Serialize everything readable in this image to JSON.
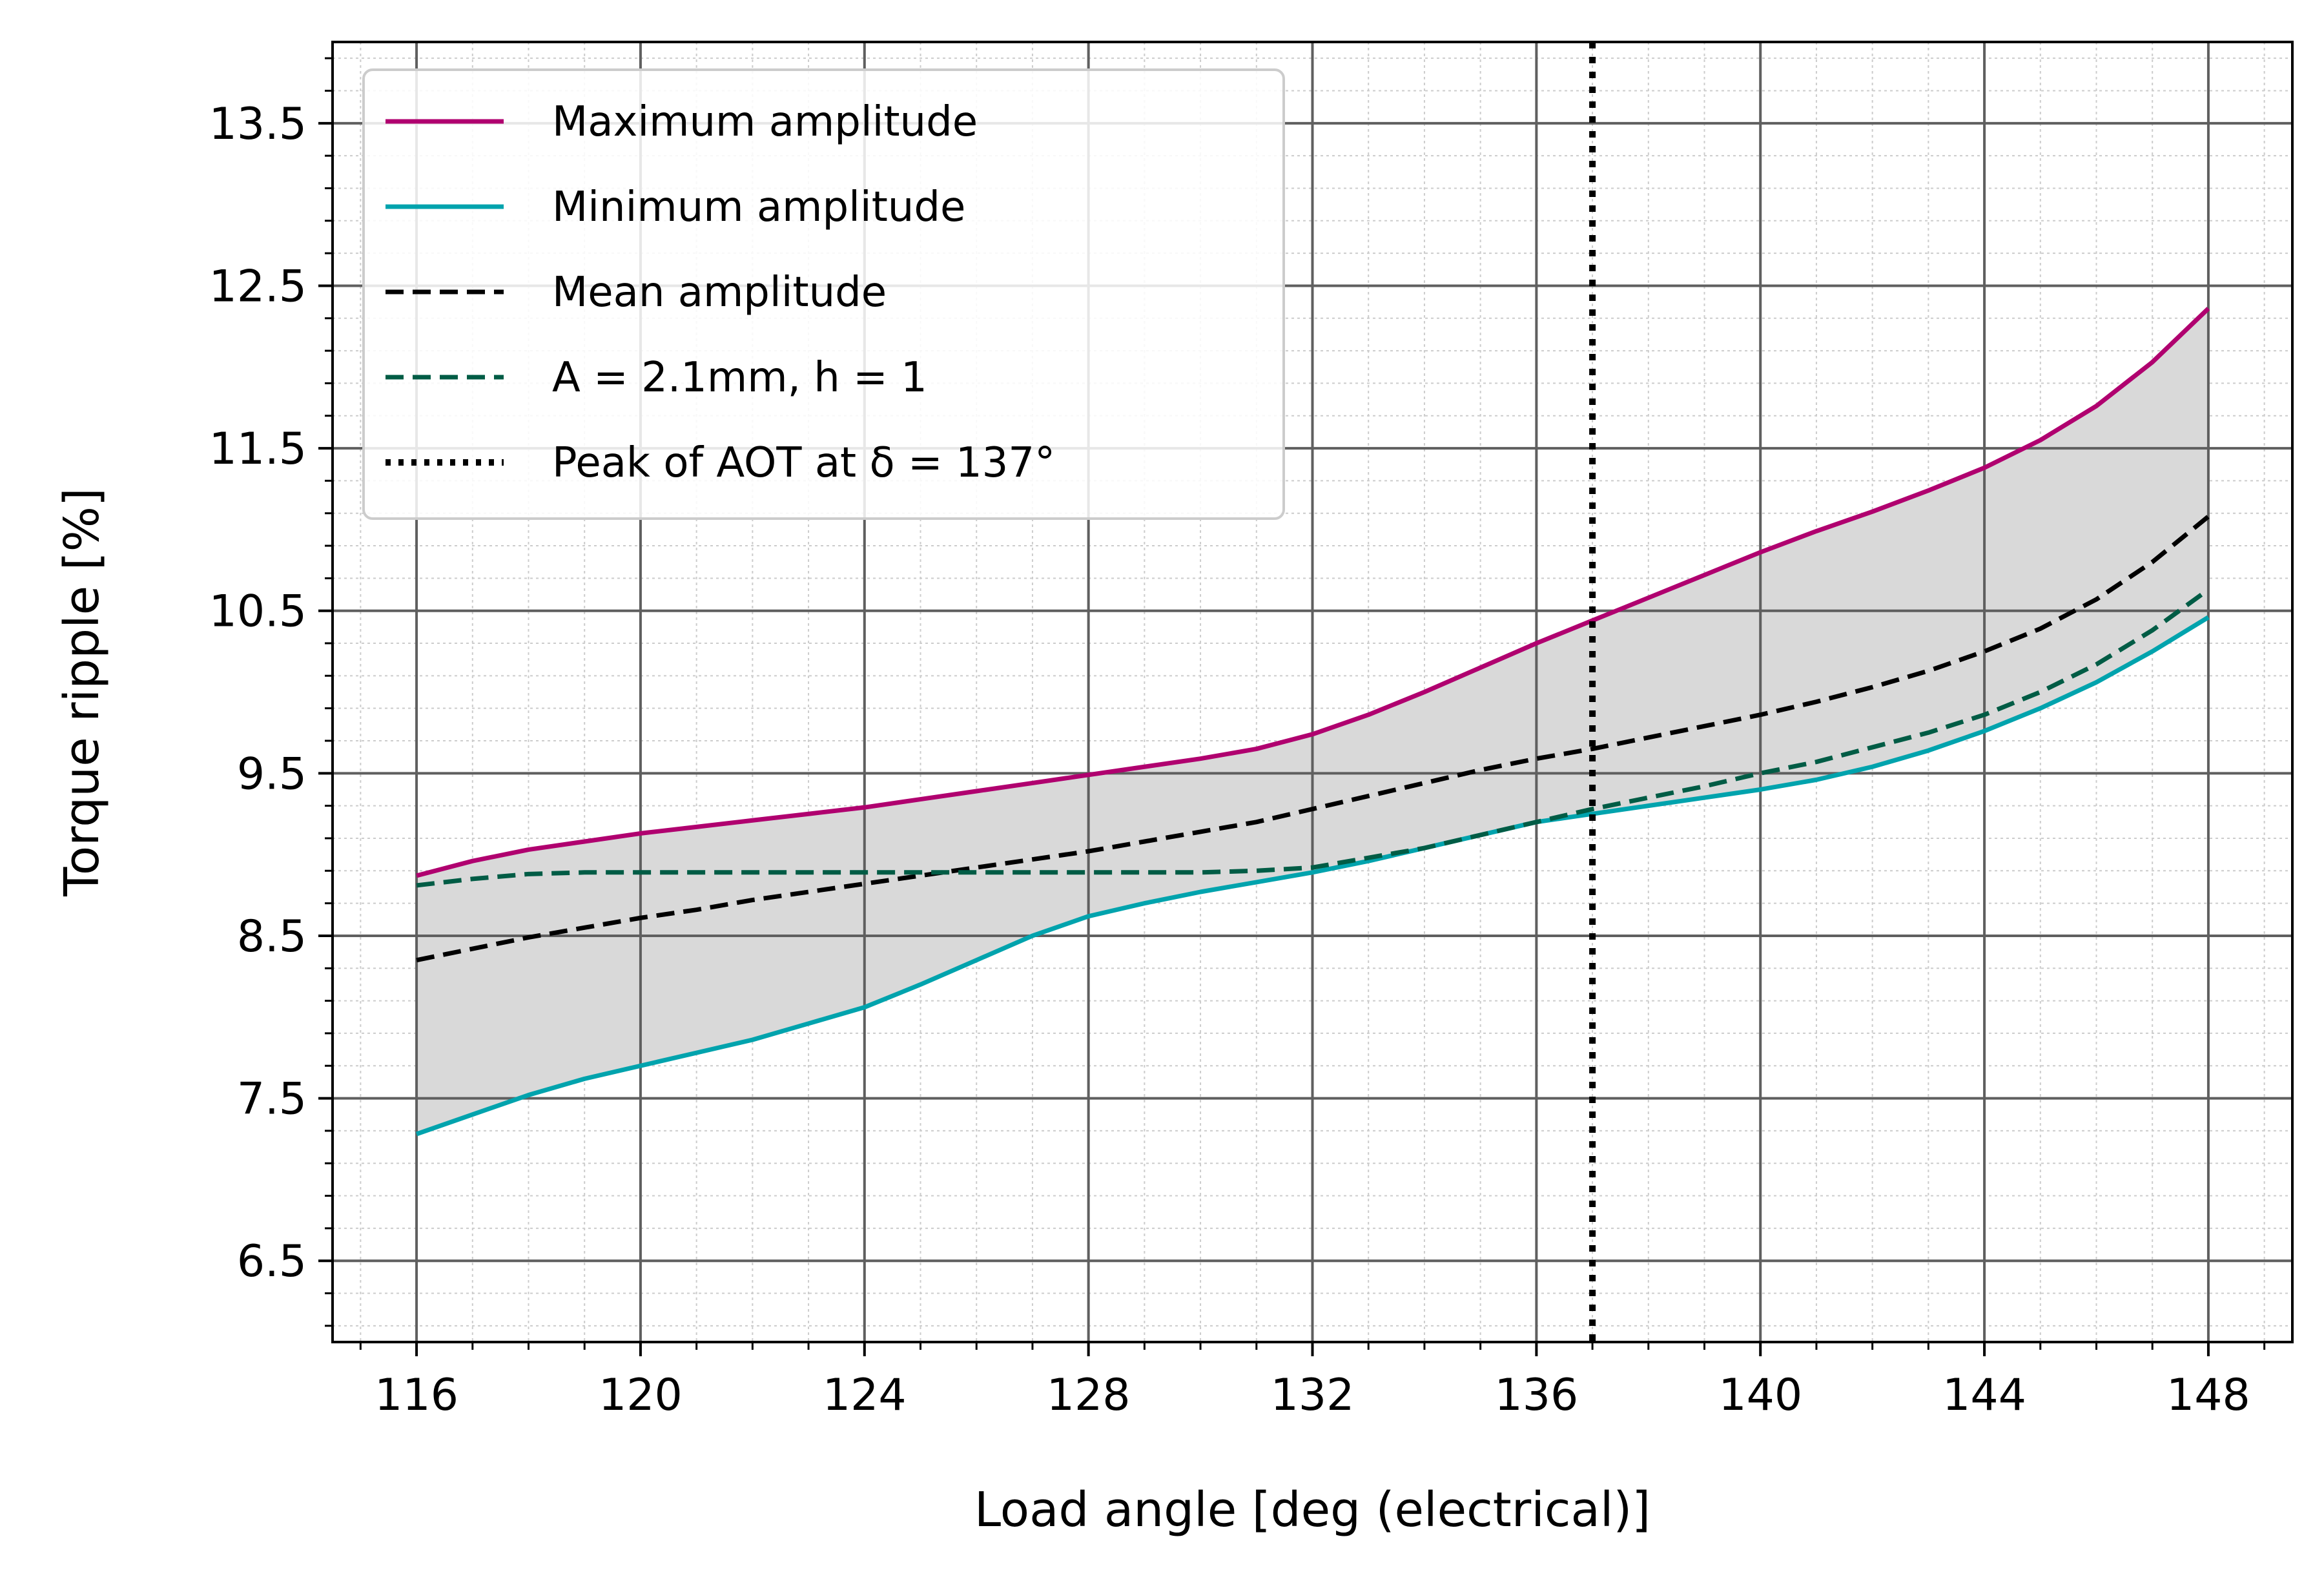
{
  "chart_data": {
    "type": "line",
    "title": "",
    "xlabel": "Load angle [deg (electrical)]",
    "ylabel": "Torque ripple [%]",
    "xlim": [
      114.5,
      149.5
    ],
    "ylim": [
      6.0,
      14.0
    ],
    "xticks": [
      116,
      120,
      124,
      128,
      132,
      136,
      140,
      144,
      148
    ],
    "xtick_labels": [
      "116",
      "120",
      "124",
      "128",
      "132",
      "136",
      "140",
      "144",
      "148"
    ],
    "yticks": [
      6.5,
      7.5,
      8.5,
      9.5,
      10.5,
      11.5,
      12.5,
      13.5
    ],
    "ytick_labels": [
      "6.5",
      "7.5",
      "8.5",
      "9.5",
      "10.5",
      "11.5",
      "12.5",
      "13.5"
    ],
    "grid": true,
    "minor_grid": true,
    "legend_position": "top-left",
    "x": [
      116,
      117,
      118,
      119,
      120,
      121,
      122,
      123,
      124,
      125,
      126,
      127,
      128,
      129,
      130,
      131,
      132,
      133,
      134,
      135,
      136,
      137,
      138,
      139,
      140,
      141,
      142,
      143,
      144,
      145,
      146,
      147,
      148
    ],
    "series": [
      {
        "name": "Maximum amplitude",
        "color": "#b0006f",
        "style": "solid",
        "values": [
          8.87,
          8.96,
          9.03,
          9.08,
          9.13,
          9.17,
          9.21,
          9.25,
          9.29,
          9.34,
          9.39,
          9.44,
          9.49,
          9.54,
          9.59,
          9.65,
          9.74,
          9.86,
          10.0,
          10.15,
          10.3,
          10.44,
          10.58,
          10.72,
          10.86,
          10.99,
          11.11,
          11.24,
          11.38,
          11.55,
          11.76,
          12.03,
          12.36
        ]
      },
      {
        "name": "Minimum amplitude",
        "color": "#00a3ad",
        "style": "solid",
        "values": [
          7.28,
          7.4,
          7.52,
          7.62,
          7.7,
          7.78,
          7.86,
          7.96,
          8.06,
          8.2,
          8.35,
          8.5,
          8.62,
          8.7,
          8.77,
          8.83,
          8.89,
          8.96,
          9.04,
          9.12,
          9.2,
          9.25,
          9.3,
          9.35,
          9.4,
          9.46,
          9.54,
          9.64,
          9.76,
          9.9,
          10.06,
          10.25,
          10.46
        ]
      },
      {
        "name": "Mean amplitude",
        "color": "#000000",
        "style": "dashed",
        "values": [
          8.35,
          8.42,
          8.49,
          8.55,
          8.61,
          8.66,
          8.72,
          8.77,
          8.82,
          8.87,
          8.92,
          8.97,
          9.02,
          9.08,
          9.14,
          9.2,
          9.28,
          9.36,
          9.44,
          9.52,
          9.59,
          9.65,
          9.72,
          9.79,
          9.86,
          9.94,
          10.03,
          10.13,
          10.25,
          10.39,
          10.57,
          10.8,
          11.08
        ]
      },
      {
        "name": "A = 2.1mm, h = 1",
        "color": "#005c45",
        "style": "dashed",
        "values": [
          8.81,
          8.85,
          8.88,
          8.89,
          8.89,
          8.89,
          8.89,
          8.89,
          8.89,
          8.89,
          8.89,
          8.89,
          8.89,
          8.89,
          8.89,
          8.9,
          8.92,
          8.98,
          9.04,
          9.12,
          9.2,
          9.28,
          9.35,
          9.42,
          9.5,
          9.57,
          9.66,
          9.75,
          9.86,
          10.0,
          10.17,
          10.38,
          10.63
        ]
      }
    ],
    "fill_between": {
      "upper": "Maximum amplitude",
      "lower": "Minimum amplitude",
      "color": "#d9d9d9"
    },
    "vline": {
      "name": "Peak of AOT at δ = 137°",
      "x": 137,
      "color": "#000000",
      "style": "dotted"
    }
  }
}
